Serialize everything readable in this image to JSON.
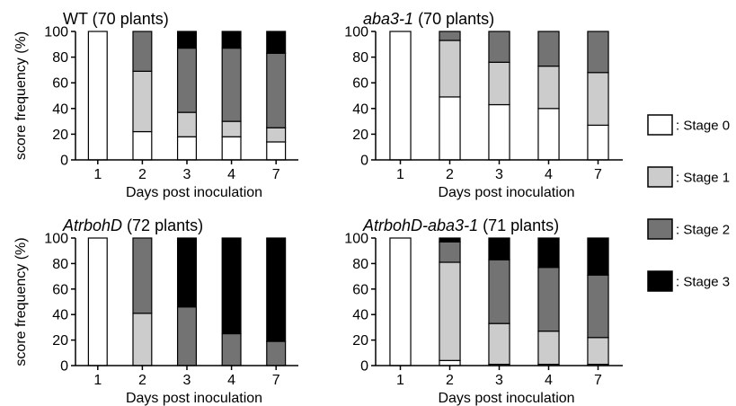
{
  "ylabel": "score frequency (%)",
  "legend": {
    "placement": "right",
    "items": [
      {
        "label": ": Stage 0",
        "color": "#ffffff"
      },
      {
        "label": ": Stage 1",
        "color": "#cccccc"
      },
      {
        "label": ": Stage 2",
        "color": "#737373"
      },
      {
        "label": ": Stage 3",
        "color": "#000000"
      }
    ]
  },
  "chart_data": [
    {
      "type": "bar",
      "stacked": true,
      "title": "WT (70 plants)",
      "title_parts": [
        {
          "text": "WT",
          "italic": false
        },
        {
          "text": " (70 plants)",
          "italic": false
        }
      ],
      "xlabel": "Days post inoculation",
      "ylabel": "score frequency (%)",
      "categories": [
        "1",
        "2",
        "3",
        "4",
        "7"
      ],
      "ylim": [
        0,
        100
      ],
      "yticks": [
        0,
        20,
        40,
        60,
        80,
        100
      ],
      "series": [
        {
          "name": "Stage 0",
          "values": [
            100,
            22,
            18,
            18,
            14
          ]
        },
        {
          "name": "Stage 1",
          "values": [
            0,
            47,
            19,
            12,
            11
          ]
        },
        {
          "name": "Stage 2",
          "values": [
            0,
            31,
            50,
            57,
            58
          ]
        },
        {
          "name": "Stage 3",
          "values": [
            0,
            0,
            13,
            13,
            17
          ]
        }
      ]
    },
    {
      "type": "bar",
      "stacked": true,
      "title": "aba3-1 (70 plants)",
      "title_parts": [
        {
          "text": "aba3-1",
          "italic": true
        },
        {
          "text": " (70 plants)",
          "italic": false
        }
      ],
      "xlabel": "Days post inoculation",
      "ylabel": "",
      "categories": [
        "1",
        "2",
        "3",
        "4",
        "7"
      ],
      "ylim": [
        0,
        100
      ],
      "yticks": [
        0,
        20,
        40,
        60,
        80,
        100
      ],
      "series": [
        {
          "name": "Stage 0",
          "values": [
            100,
            49,
            43,
            40,
            27
          ]
        },
        {
          "name": "Stage 1",
          "values": [
            0,
            44,
            33,
            33,
            41
          ]
        },
        {
          "name": "Stage 2",
          "values": [
            0,
            7,
            24,
            27,
            32
          ]
        },
        {
          "name": "Stage 3",
          "values": [
            0,
            0,
            0,
            0,
            0
          ]
        }
      ]
    },
    {
      "type": "bar",
      "stacked": true,
      "title": "AtrbohD (72 plants)",
      "title_parts": [
        {
          "text": "AtrbohD",
          "italic": true
        },
        {
          "text": " (72 plants)",
          "italic": false
        }
      ],
      "xlabel": "Days post inoculation",
      "ylabel": "score frequency (%)",
      "categories": [
        "1",
        "2",
        "3",
        "4",
        "7"
      ],
      "ylim": [
        0,
        100
      ],
      "yticks": [
        0,
        20,
        40,
        60,
        80,
        100
      ],
      "series": [
        {
          "name": "Stage 0",
          "values": [
            100,
            0,
            0,
            0,
            0
          ]
        },
        {
          "name": "Stage 1",
          "values": [
            0,
            41,
            0,
            0,
            0
          ]
        },
        {
          "name": "Stage 2",
          "values": [
            0,
            59,
            46,
            25,
            19
          ]
        },
        {
          "name": "Stage 3",
          "values": [
            0,
            0,
            54,
            75,
            81
          ]
        }
      ]
    },
    {
      "type": "bar",
      "stacked": true,
      "title": "AtrbohD-aba3-1 (71 plants)",
      "title_parts": [
        {
          "text": "AtrbohD-aba3-1",
          "italic": true
        },
        {
          "text": " (71 plants)",
          "italic": false
        }
      ],
      "xlabel": "Days post inoculation",
      "ylabel": "",
      "categories": [
        "1",
        "2",
        "3",
        "4",
        "7"
      ],
      "ylim": [
        0,
        100
      ],
      "yticks": [
        0,
        20,
        40,
        60,
        80,
        100
      ],
      "series": [
        {
          "name": "Stage 0",
          "values": [
            100,
            4,
            1,
            1,
            1
          ]
        },
        {
          "name": "Stage 1",
          "values": [
            0,
            77,
            32,
            26,
            21
          ]
        },
        {
          "name": "Stage 2",
          "values": [
            0,
            16,
            50,
            50,
            49
          ]
        },
        {
          "name": "Stage 3",
          "values": [
            0,
            3,
            17,
            23,
            29
          ]
        }
      ]
    }
  ]
}
